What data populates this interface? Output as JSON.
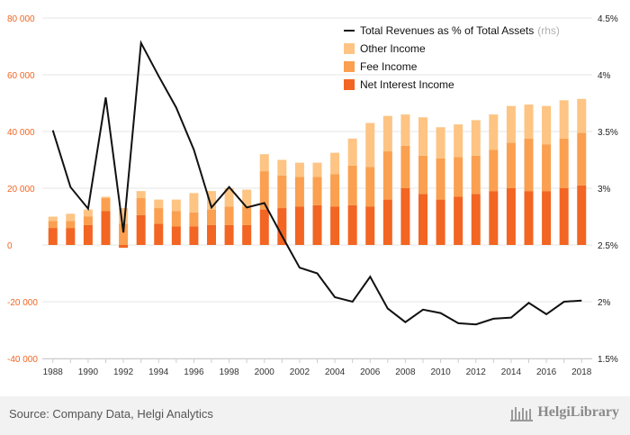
{
  "chart_data": {
    "type": "bar",
    "stacked": true,
    "x": [
      1988,
      1989,
      1990,
      1991,
      1992,
      1993,
      1994,
      1995,
      1996,
      1997,
      1998,
      1999,
      2000,
      2001,
      2002,
      2003,
      2004,
      2005,
      2006,
      2007,
      2008,
      2009,
      2010,
      2011,
      2012,
      2013,
      2014,
      2015,
      2016,
      2017,
      2018
    ],
    "x_tick_labels": [
      "1988",
      "1990",
      "1992",
      "1994",
      "1996",
      "1998",
      "2000",
      "2002",
      "2004",
      "2006",
      "2008",
      "2010",
      "2012",
      "2014",
      "2016",
      "2018"
    ],
    "y_left_ticks": [
      "80 000",
      "60 000",
      "40 000",
      "20 000",
      "0",
      "-20 000",
      "-40 000"
    ],
    "y_right_ticks": [
      "4.5%",
      "4%",
      "3.5%",
      "3%",
      "2.5%",
      "2%",
      "1.5%"
    ],
    "ylim_left": [
      -40000,
      80000
    ],
    "ylim_right": [
      1.5,
      4.5
    ],
    "series": [
      {
        "name": "Net Interest Income",
        "axis": "left",
        "color": "#f26522",
        "values": [
          6000,
          6000,
          7000,
          12000,
          -1000,
          10500,
          7500,
          6500,
          6500,
          7000,
          7000,
          7000,
          12500,
          13000,
          13500,
          14000,
          13500,
          14000,
          13500,
          16000,
          20000,
          18000,
          16000,
          17000,
          18000,
          19000,
          20000,
          19000,
          19000,
          20000,
          21000
        ]
      },
      {
        "name": "Fee Income",
        "axis": "left",
        "color": "#faa050",
        "values": [
          2500,
          2500,
          3000,
          4500,
          7500,
          6000,
          5500,
          5500,
          5000,
          5500,
          6500,
          6500,
          13500,
          11500,
          10500,
          10000,
          11500,
          14000,
          14000,
          17000,
          15000,
          13500,
          14500,
          14000,
          13500,
          14500,
          16000,
          18500,
          16500,
          17500,
          18500
        ]
      },
      {
        "name": "Other Income",
        "axis": "left",
        "color": "#fdc484",
        "values": [
          1500,
          2500,
          2500,
          500,
          5500,
          2500,
          3000,
          4000,
          6800,
          6500,
          6500,
          6000,
          6000,
          5500,
          5000,
          5000,
          7500,
          9500,
          15500,
          12500,
          11000,
          13500,
          11000,
          11500,
          12500,
          12500,
          13000,
          12000,
          13500,
          13500,
          12000
        ]
      },
      {
        "name": "Total Revenues as % of Total Assets",
        "name_suffix": "(rhs)",
        "axis": "right",
        "type": "line",
        "color": "#111111",
        "values": [
          3.51,
          3.01,
          2.82,
          3.8,
          2.61,
          4.28,
          3.99,
          3.71,
          3.34,
          2.83,
          3.01,
          2.83,
          2.87,
          2.58,
          2.3,
          2.25,
          2.04,
          2.0,
          2.22,
          1.94,
          1.82,
          1.93,
          1.9,
          1.81,
          1.8,
          1.85,
          1.86,
          1.99,
          1.89,
          2.0,
          2.01
        ]
      }
    ]
  },
  "footer": {
    "source": "Source: Company Data, Helgi Analytics",
    "logo_text": "HelgiLibrary"
  },
  "colors": {
    "left_axis": "#f26522",
    "grid": "#e6e6e6",
    "line": "#111111"
  }
}
